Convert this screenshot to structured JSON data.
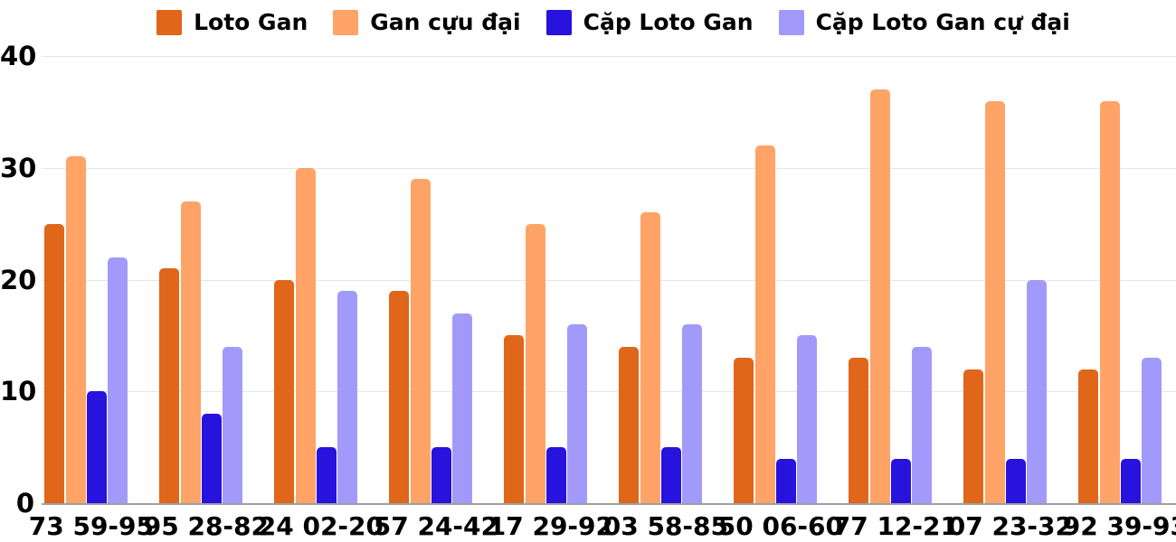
{
  "legend": {
    "items": [
      {
        "label": "Loto Gan",
        "color": "#E0661A"
      },
      {
        "label": "Gan cựu đại",
        "color": "#FFA366"
      },
      {
        "label": "Cặp Loto Gan",
        "color": "#2712DE"
      },
      {
        "label": "Cặp Loto Gan cự đại",
        "color": "#A29AFA"
      }
    ]
  },
  "chart_data": {
    "type": "bar",
    "title": "",
    "xlabel": "",
    "ylabel": "",
    "categories": [
      "73 59-95",
      "95 28-82",
      "24 02-20",
      "57 24-42",
      "17 29-92",
      "03 58-85",
      "50 06-60",
      "77 12-21",
      "07 23-32",
      "92 39-93"
    ],
    "series": [
      {
        "name": "Loto Gan",
        "color": "#E0661A",
        "values": [
          25,
          21,
          20,
          19,
          15,
          14,
          13,
          13,
          12,
          12
        ]
      },
      {
        "name": "Gan cựu đại",
        "color": "#FFA366",
        "values": [
          31,
          27,
          30,
          29,
          25,
          26,
          32,
          37,
          36,
          36
        ]
      },
      {
        "name": "Cặp Loto Gan",
        "color": "#2712DE",
        "values": [
          10,
          8,
          5,
          5,
          5,
          5,
          4,
          4,
          4,
          4
        ]
      },
      {
        "name": "Cặp Loto Gan cự đại",
        "color": "#A29AFA",
        "values": [
          22,
          14,
          19,
          17,
          16,
          16,
          15,
          14,
          20,
          13
        ]
      }
    ],
    "ylim": [
      0,
      40
    ],
    "y_ticks": [
      0,
      10,
      20,
      30,
      40
    ],
    "grid": true,
    "legend_position": "top"
  }
}
